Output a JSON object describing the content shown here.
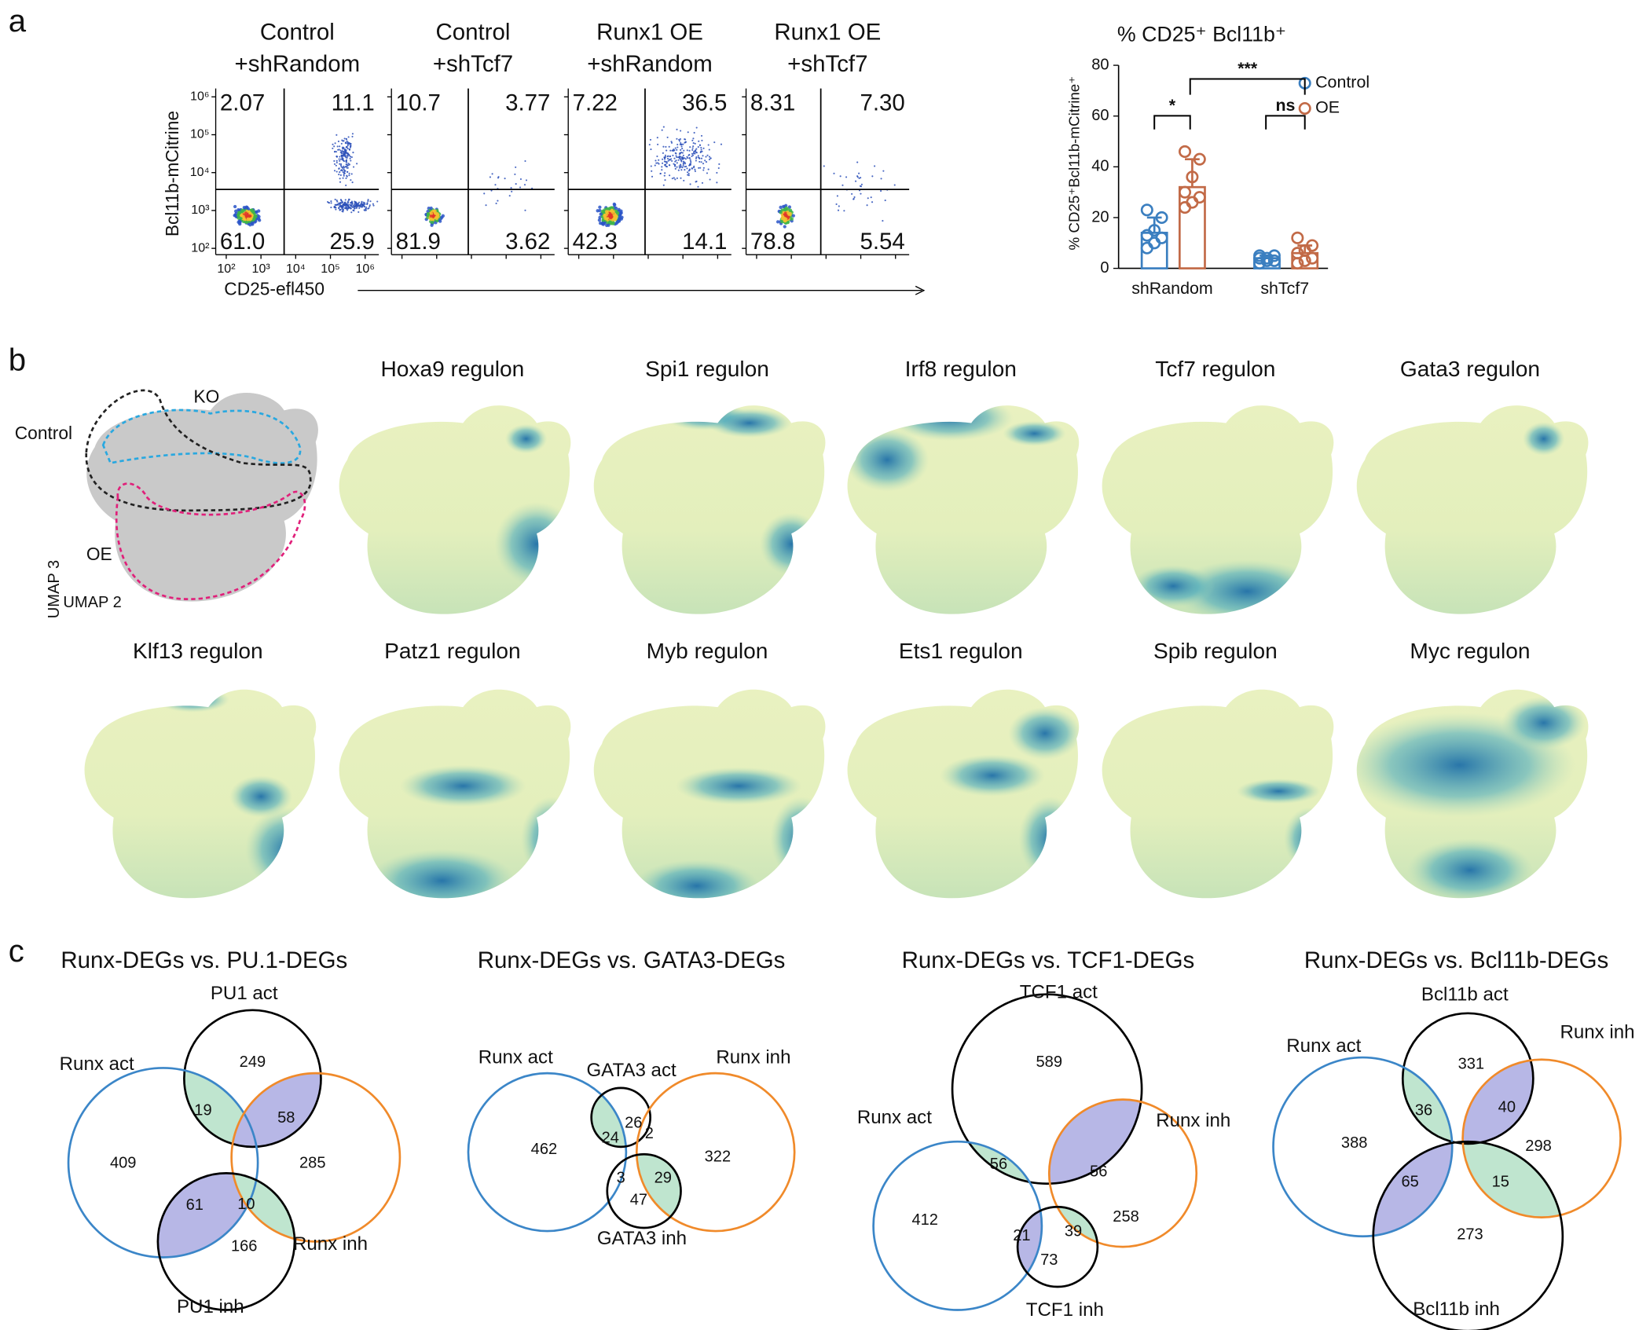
{
  "panel_a": {
    "label": "a",
    "flow": {
      "y_label": "Bcl11b-mCitrine",
      "x_label": "CD25-efl450",
      "y_ticks": [
        "10⁶",
        "10⁵",
        "10⁴",
        "10³",
        "10²"
      ],
      "x_ticks": [
        "10²",
        "10³",
        "10⁴",
        "10⁵",
        "10⁶"
      ],
      "plots": [
        {
          "title": [
            "Control",
            "+shRandom"
          ],
          "quadrants": [
            2.07,
            11.1,
            {
              "value": 61.0,
              "label": "61.0"
            },
            25.9
          ]
        },
        {
          "title": [
            "Control",
            "+shTcf7"
          ],
          "quadrants": [
            10.7,
            3.77,
            81.9,
            3.62
          ]
        },
        {
          "title": [
            "Runx1 OE",
            "+shRandom"
          ],
          "quadrants": [
            7.22,
            36.5,
            42.3,
            14.1
          ]
        },
        {
          "title": [
            "Runx1 OE",
            "+shTcf7"
          ],
          "quadrants": [
            8.31,
            {
              "value": 7.3,
              "label": "7.30"
            },
            78.8,
            5.54
          ]
        }
      ]
    },
    "chart": {
      "type": "bar",
      "title": "% CD25⁺ Bcl11b⁺",
      "y_label": "% CD25⁺Bcl11b-mCitrine⁺",
      "categories": [
        "shRandom",
        "shTcf7"
      ],
      "series": [
        {
          "name": "Control",
          "color": "#3b7fc0",
          "values": [
            14,
            4
          ],
          "errors": [
            6,
            1
          ],
          "points": [
            [
              8,
              10,
              12,
              13,
              15,
              20,
              23
            ],
            [
              2,
              3,
              3,
              4,
              4,
              5,
              5
            ]
          ]
        },
        {
          "name": "OE",
          "color": "#c26a47",
          "values": [
            32,
            6
          ],
          "errors": [
            11,
            3
          ],
          "points": [
            [
              24,
              26,
              28,
              30,
              36,
              43,
              46
            ],
            [
              2,
              3,
              4,
              6,
              7,
              9,
              12
            ]
          ]
        }
      ],
      "ylim": [
        0,
        80
      ],
      "yticks": [
        0,
        20,
        40,
        60,
        80
      ],
      "significance": [
        "*",
        "***",
        "ns"
      ]
    }
  },
  "panel_b": {
    "label": "b",
    "umap": {
      "groups": [
        "KO",
        "Control",
        "OE"
      ],
      "axes": [
        "UMAP 3",
        "UMAP 2"
      ]
    },
    "regulons": [
      "Hoxa9 regulon",
      "Spi1 regulon",
      "Irf8 regulon",
      "Tcf7 regulon",
      "Gata3 regulon",
      "Klf13 regulon",
      "Patz1 regulon",
      "Myb regulon",
      "Ets1 regulon",
      "Spib regulon",
      "Myc regulon"
    ]
  },
  "panel_c": {
    "label": "c",
    "venns": [
      {
        "title": "Runx-DEGs vs. PU.1-DEGs",
        "sets": [
          "PU1 act",
          "Runx act",
          "Runx inh",
          "PU1 inh"
        ],
        "regions": [
          249,
          19,
          58,
          409,
          285,
          61,
          10,
          166
        ]
      },
      {
        "title": "Runx-DEGs vs. GATA3-DEGs",
        "sets": [
          "Runx act",
          "GATA3 act",
          "Runx inh",
          "GATA3 inh"
        ],
        "regions": [
          462,
          24,
          26,
          2,
          322,
          3,
          29,
          47
        ]
      },
      {
        "title": "Runx-DEGs vs. TCF1-DEGs",
        "sets": [
          "TCF1 act",
          "Runx act",
          "Runx inh",
          "TCF1 inh"
        ],
        "regions": [
          589,
          56,
          56,
          412,
          258,
          21,
          39,
          73
        ]
      },
      {
        "title": "Runx-DEGs vs. Bcl11b-DEGs",
        "sets": [
          "Bcl11b act",
          "Runx act",
          "Runx inh",
          "Bcl11b inh"
        ],
        "regions": [
          331,
          36,
          40,
          388,
          298,
          65,
          15,
          273
        ]
      }
    ]
  }
}
